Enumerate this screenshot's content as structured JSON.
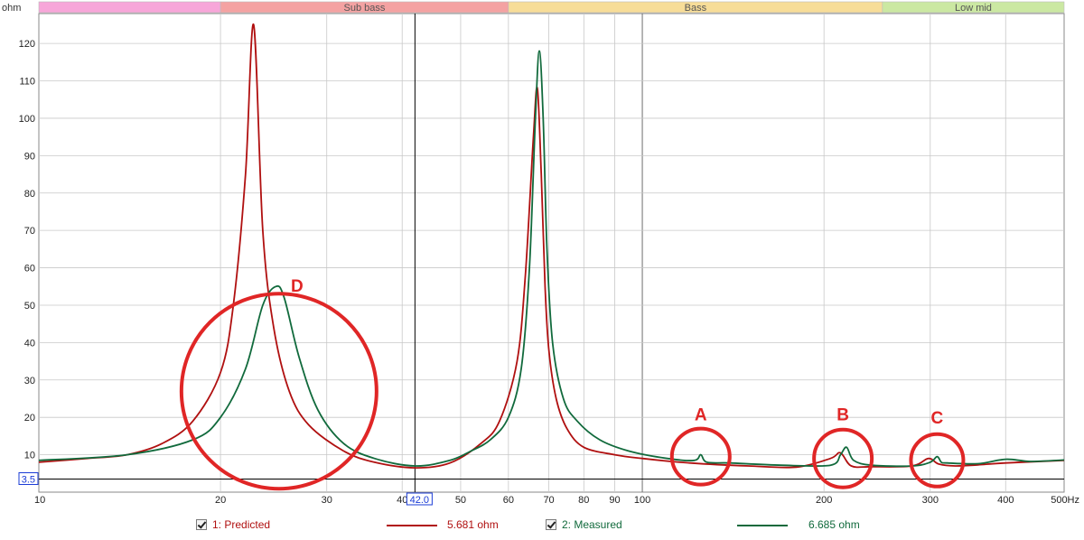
{
  "chart_data": {
    "type": "line",
    "ylabel": "ohm",
    "xunit": "Hz",
    "xscale": "log",
    "xlim": [
      10,
      500
    ],
    "ylim": [
      0,
      128
    ],
    "grid": true,
    "x_ticks": [
      "10",
      "20",
      "30",
      "40",
      "50",
      "60",
      "70",
      "80",
      "90",
      "100",
      "200",
      "300",
      "400",
      "500Hz"
    ],
    "y_ticks": [
      "10",
      "20",
      "30",
      "40",
      "50",
      "60",
      "70",
      "80",
      "90",
      "100",
      "110",
      "120"
    ],
    "bands": [
      {
        "label": "",
        "from": 10,
        "to": 20,
        "color": "#f7a6d9"
      },
      {
        "label": "Sub bass",
        "from": 20,
        "to": 60,
        "color": "#f4a2a2"
      },
      {
        "label": "Bass",
        "from": 60,
        "to": 250,
        "color": "#f7dd98"
      },
      {
        "label": "Low mid",
        "from": 250,
        "to": 500,
        "color": "#cbe8a2"
      }
    ],
    "cursor": {
      "x": 42.0,
      "x_label": "42.0",
      "y": 3.5,
      "y_label": "3.5"
    },
    "series": [
      {
        "name": "1: Predicted",
        "value": "5.681 ohm",
        "color": "#b01010",
        "x": [
          10,
          12,
          14,
          16,
          18,
          20,
          21,
          22,
          22.7,
          23.5,
          24.5,
          26,
          28,
          32,
          36,
          42,
          48,
          54,
          58,
          62,
          64,
          66,
          67,
          68,
          69,
          70,
          72,
          75,
          80,
          90,
          100,
          120,
          150,
          180,
          205,
          213,
          222,
          240,
          280,
          298,
          310,
          330,
          360,
          400,
          500
        ],
        "y": [
          8,
          9,
          10,
          13,
          19,
          32,
          50,
          85,
          125,
          70,
          44,
          27,
          18,
          11,
          8,
          6.5,
          7.8,
          13,
          19,
          35,
          58,
          95,
          108,
          85,
          55,
          38,
          25,
          17,
          12,
          10,
          9,
          7.8,
          7,
          6.7,
          9,
          10.5,
          7,
          6.8,
          7,
          9,
          7.5,
          7,
          7.3,
          7.8,
          8.5
        ]
      },
      {
        "name": "2: Measured",
        "value": "6.685 ohm",
        "color": "#116a3c",
        "x": [
          10,
          14,
          18,
          20,
          22,
          23.5,
          24.7,
          25.5,
          27,
          29,
          32,
          36,
          42,
          48,
          52,
          56,
          60,
          63,
          65,
          66.5,
          67.5,
          68.5,
          69.5,
          71,
          74,
          78,
          85,
          95,
          110,
          122,
          125,
          128,
          140,
          170,
          205,
          213,
          218,
          224,
          240,
          280,
          300,
          308,
          313,
          320,
          360,
          400,
          440,
          500
        ],
        "y": [
          8.5,
          10,
          14,
          20,
          33,
          50,
          55,
          52,
          36,
          22,
          13,
          9,
          7,
          8.5,
          11,
          14,
          20,
          33,
          60,
          100,
          118,
          100,
          65,
          40,
          25,
          19,
          14,
          11,
          9,
          8.5,
          10,
          8,
          7.8,
          7.2,
          7.2,
          10,
          12,
          8.5,
          7.2,
          7,
          8,
          9.5,
          8,
          7.8,
          7.6,
          8.8,
          8.2,
          8.6
        ]
      }
    ],
    "annotations": [
      {
        "label": "A",
        "x": 125,
        "y": 9.5,
        "color": "#e02626"
      },
      {
        "label": "B",
        "x": 215,
        "y": 9,
        "color": "#e02626"
      },
      {
        "label": "C",
        "x": 308,
        "y": 8.5,
        "color": "#e02626"
      },
      {
        "label": "D",
        "x": 25,
        "y": 27,
        "color": "#e02626"
      }
    ]
  }
}
